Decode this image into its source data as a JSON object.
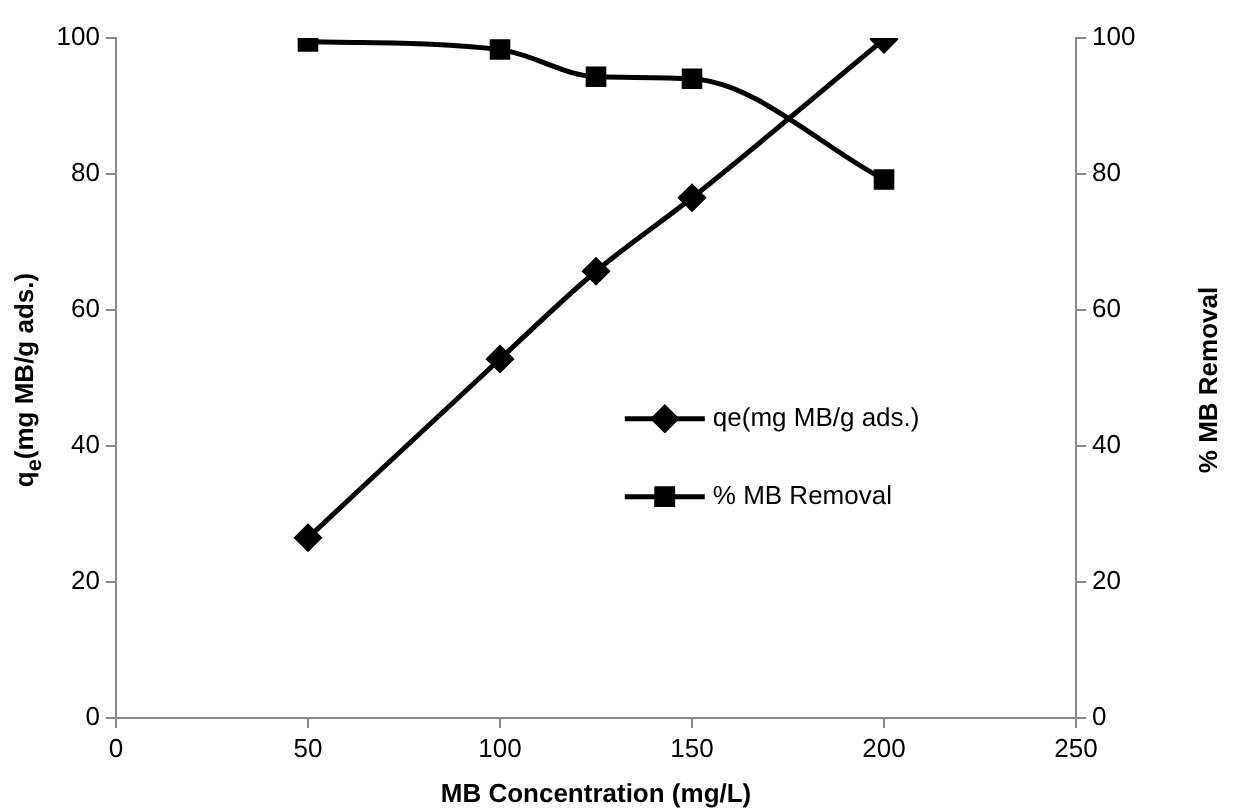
{
  "chart_data": {
    "type": "line",
    "xlabel": "MB Concentration (mg/L)",
    "ylabel": "q$_{e}$(mg MB/g ads.)",
    "y2label": "% MB Removal",
    "x": [
      50,
      100,
      125,
      150,
      200
    ],
    "series": [
      {
        "name": "qe(mg MB/g ads.)",
        "color": "#000000",
        "marker": "diamond",
        "values": [
          26.5,
          52.8,
          65.7,
          76.5,
          99.8
        ]
      },
      {
        "name": "% MB Removal",
        "color": "#000000",
        "marker": "square",
        "axis": "y2",
        "values": [
          99.5,
          98.3,
          94.3,
          94.0,
          79.2
        ]
      }
    ],
    "xlim": [
      0,
      250
    ],
    "xticks": [
      0,
      50,
      100,
      150,
      200,
      250
    ],
    "ylim": [
      0,
      100
    ],
    "yticks": [
      0,
      20,
      40,
      60,
      80,
      100
    ],
    "y2lim": [
      0,
      100
    ],
    "y2ticks": [
      0,
      20,
      40,
      60,
      80,
      100
    ],
    "grid": false,
    "legend": "right",
    "line_style": "solid"
  }
}
